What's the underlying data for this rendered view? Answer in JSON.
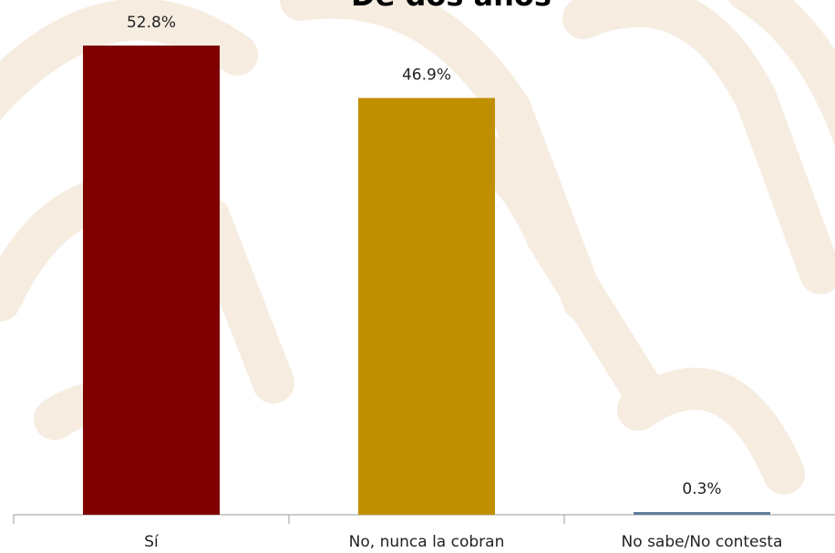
{
  "chart_data": {
    "type": "bar",
    "title": "De dos años",
    "categories": [
      "Sí",
      "No, nunca la cobran",
      "No sabe/No contesta"
    ],
    "values": [
      52.8,
      46.9,
      0.3
    ],
    "value_labels": [
      "52.8%",
      "46.9%",
      "0.3%"
    ],
    "colors": [
      "#7f0000",
      "#bf8f00",
      "#5b7a99"
    ]
  }
}
